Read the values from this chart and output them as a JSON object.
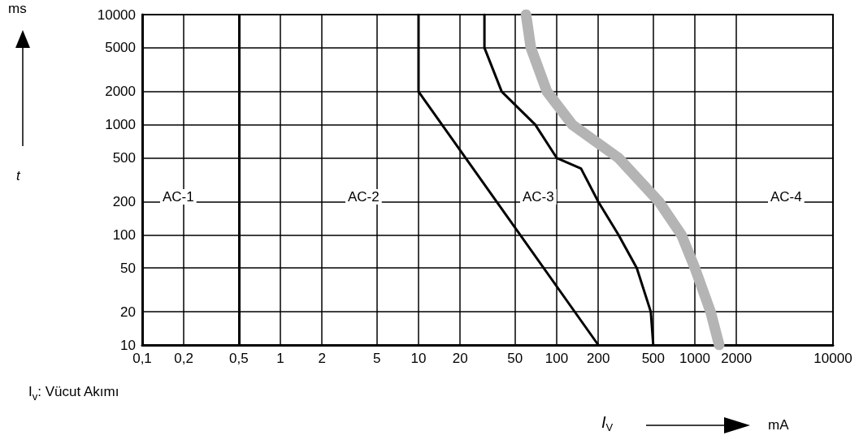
{
  "chart_data": {
    "type": "line",
    "xlabel": "I$_{V}$",
    "log": "xy",
    "grid": true,
    "marker": "none",
    "line_style": "solid",
    "ref_lines": [
      {
        "axis": "x",
        "value": 0.5,
        "color": "#000000"
      }
    ],
    "xlim": [
      0.1,
      10000
    ],
    "xticks": [
      {
        "value": 0.1,
        "label": "0,1"
      },
      {
        "value": 0.2,
        "label": "0,2"
      },
      {
        "value": 0.5,
        "label": "0,5"
      },
      1,
      2,
      5,
      10,
      20,
      50,
      100,
      200,
      500,
      1000,
      2000,
      10000
    ],
    "ylim": [
      10,
      10000
    ],
    "yticks": [
      10,
      20,
      50,
      100,
      200,
      500,
      1000,
      2000,
      5000,
      10000
    ],
    "series": [
      {
        "color": "#000000",
        "x": [
          10,
          10,
          200
        ],
        "values": [
          10000,
          2000,
          10
        ]
      },
      {
        "color": "#000000",
        "x": [
          30,
          30,
          40,
          70,
          100,
          150,
          200,
          280,
          380,
          480,
          500
        ],
        "values": [
          10000,
          5000,
          2000,
          1000,
          500,
          400,
          200,
          100,
          50,
          20,
          10
        ]
      },
      {
        "color": "#b4b4b4",
        "x": [
          60,
          65,
          85,
          130,
          280,
          550,
          800,
          1000,
          1300,
          1500
        ],
        "values": [
          10000,
          5000,
          2000,
          1000,
          500,
          200,
          100,
          50,
          20,
          10
        ]
      }
    ],
    "annotations": [
      "AC-1",
      "AC-2",
      "AC-3",
      "AC-4",
      "ms",
      "t",
      "mA",
      "I$_{v}$: Vücut Akımı"
    ]
  }
}
